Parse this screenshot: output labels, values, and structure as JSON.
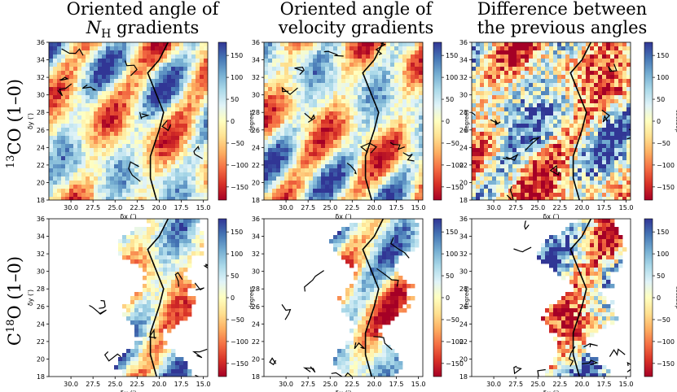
{
  "column_titles": [
    {
      "line1": "Oriented angle of",
      "line2_main": "N",
      "line2_sub": "H",
      "line2_rest": " gradients"
    },
    {
      "line1": "Oriented angle of",
      "line2_main": "velocity gradients",
      "line2_sub": "",
      "line2_rest": ""
    },
    {
      "line1": "Difference between",
      "line2_main": "the previous angles",
      "line2_sub": "",
      "line2_rest": ""
    }
  ],
  "row_labels": [
    {
      "sup": "13",
      "text": "CO (1–0)"
    },
    {
      "pre": "C",
      "sup": "18",
      "text": "O (1–0)"
    }
  ],
  "colors": {
    "colormap": [
      "#a50026",
      "#d73027",
      "#f46d43",
      "#fdae61",
      "#fee090",
      "#ffffbf",
      "#e0f3f8",
      "#abd9e9",
      "#74add1",
      "#4575b4",
      "#313695"
    ],
    "contour": "#000000"
  },
  "chart_data": {
    "type": "heatmap",
    "panels": [
      {
        "row": "13CO (1–0)",
        "column": "Oriented angle of N_H gradients",
        "masked": false,
        "seed": 11
      },
      {
        "row": "13CO (1–0)",
        "column": "Oriented angle of velocity gradients",
        "masked": false,
        "seed": 23
      },
      {
        "row": "13CO (1–0)",
        "column": "Difference between the previous angles",
        "masked": false,
        "seed": 37
      },
      {
        "row": "C18O (1–0)",
        "column": "Oriented angle of N_H gradients",
        "masked": true,
        "seed": 41
      },
      {
        "row": "C18O (1–0)",
        "column": "Oriented angle of velocity gradients",
        "masked": true,
        "seed": 53
      },
      {
        "row": "C18O (1–0)",
        "column": "Difference between the previous angles",
        "masked": true,
        "seed": 67
      }
    ],
    "x_axis": {
      "label": "δx (′)",
      "lim": [
        32.5,
        14.5
      ],
      "ticks": [
        30.0,
        27.5,
        25.0,
        22.5,
        20.0,
        17.5,
        15.0
      ],
      "tick_labels": [
        "30.0",
        "27.5",
        "25.0",
        "22.5",
        "20.0",
        "17.5",
        "15.0"
      ]
    },
    "y_axis": {
      "label": "δy (′)",
      "lim": [
        18,
        36
      ],
      "ticks": [
        18,
        20,
        22,
        24,
        26,
        28,
        30,
        32,
        34,
        36
      ],
      "tick_labels": [
        "18",
        "20",
        "22",
        "24",
        "26",
        "28",
        "30",
        "32",
        "34",
        "36"
      ]
    },
    "colorbar": {
      "label": "degrees",
      "lim": [
        -180,
        180
      ],
      "ticks": [
        -150,
        -100,
        -50,
        0,
        50,
        100,
        150
      ],
      "tick_labels": [
        "−150",
        "−100",
        "−50",
        "0",
        "50",
        "100",
        "150"
      ]
    },
    "filament_spine": [
      [
        20.3,
        18.0
      ],
      [
        21.0,
        20.5
      ],
      [
        21.0,
        23.0
      ],
      [
        20.0,
        26.0
      ],
      [
        19.5,
        28.0
      ],
      [
        20.5,
        30.5
      ],
      [
        21.3,
        32.5
      ],
      [
        20.0,
        34.0
      ],
      [
        19.0,
        36.0
      ]
    ],
    "grid": false
  }
}
